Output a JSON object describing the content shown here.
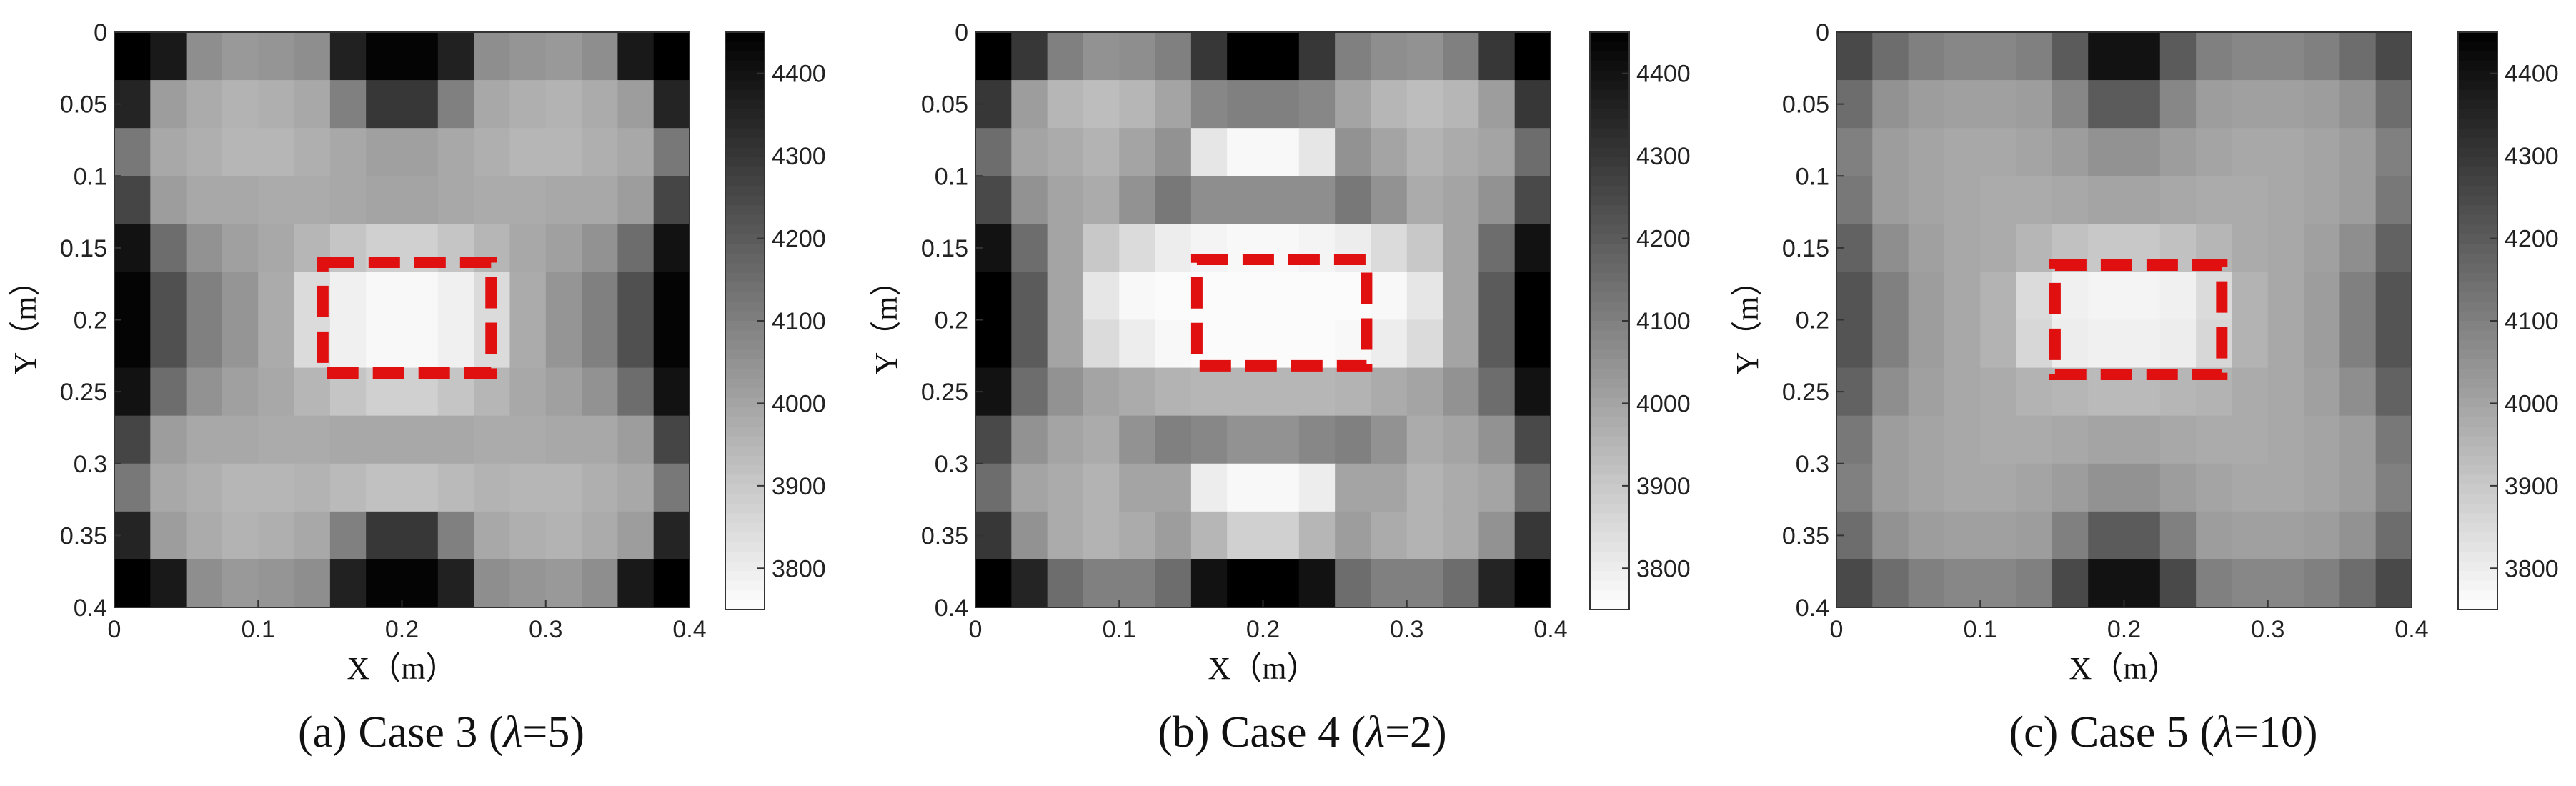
{
  "chart_data": [
    {
      "type": "heatmap",
      "caption": {
        "before": "(a) Case 3 (",
        "symbol": "λ",
        "after": "=5)"
      },
      "xlabel": "X（m）",
      "ylabel": "Y（m）",
      "xlim": [
        0,
        0.4
      ],
      "ylim": [
        0,
        0.4
      ],
      "x_ticks": [
        "0",
        "0.1",
        "0.2",
        "0.3",
        "0.4"
      ],
      "y_ticks": [
        "0",
        "0.05",
        "0.1",
        "0.15",
        "0.2",
        "0.25",
        "0.3",
        "0.35",
        "0.4"
      ],
      "colorbar": {
        "min": 3750,
        "max": 4450,
        "ticks": [
          "3800",
          "3900",
          "4000",
          "4100",
          "4200",
          "4300",
          "4400"
        ]
      },
      "grid": [
        [
          4450,
          4380,
          4060,
          4030,
          4040,
          4060,
          4360,
          4440,
          4440,
          4360,
          4060,
          4040,
          4030,
          4060,
          4380,
          4450
        ],
        [
          4350,
          4020,
          3980,
          3960,
          3970,
          3990,
          4100,
          4300,
          4300,
          4100,
          3990,
          3970,
          3960,
          3980,
          4020,
          4350
        ],
        [
          4120,
          3990,
          3970,
          3950,
          3950,
          3970,
          3990,
          4010,
          4010,
          3990,
          3970,
          3950,
          3950,
          3970,
          3990,
          4120
        ],
        [
          4260,
          4020,
          3990,
          3990,
          3980,
          3980,
          3990,
          4000,
          4000,
          3990,
          3980,
          3980,
          3990,
          3990,
          4020,
          4260
        ],
        [
          4400,
          4150,
          4050,
          4010,
          3990,
          3950,
          3910,
          3880,
          3880,
          3910,
          3950,
          3990,
          4010,
          4050,
          4150,
          4400
        ],
        [
          4440,
          4230,
          4100,
          4040,
          3980,
          3850,
          3790,
          3770,
          3770,
          3790,
          3850,
          3980,
          4040,
          4100,
          4230,
          4440
        ],
        [
          4440,
          4230,
          4100,
          4040,
          3980,
          3850,
          3790,
          3770,
          3770,
          3790,
          3850,
          3980,
          4040,
          4100,
          4230,
          4440
        ],
        [
          4400,
          4150,
          4050,
          4010,
          3990,
          3950,
          3910,
          3880,
          3880,
          3910,
          3950,
          3990,
          4010,
          4050,
          4150,
          4400
        ],
        [
          4260,
          4020,
          3990,
          3990,
          3980,
          3980,
          3990,
          3990,
          3990,
          3990,
          3980,
          3980,
          3990,
          3990,
          4020,
          4260
        ],
        [
          4120,
          3990,
          3970,
          3950,
          3950,
          3960,
          3940,
          3920,
          3920,
          3940,
          3960,
          3950,
          3950,
          3970,
          3990,
          4120
        ],
        [
          4350,
          4020,
          3980,
          3960,
          3970,
          3990,
          4100,
          4300,
          4300,
          4100,
          3990,
          3970,
          3960,
          3980,
          4020,
          4350
        ],
        [
          4450,
          4380,
          4060,
          4030,
          4040,
          4060,
          4360,
          4440,
          4440,
          4360,
          4060,
          4040,
          4030,
          4060,
          4380,
          4450
        ]
      ],
      "annotation_box": {
        "x": [
          0.145,
          0.262
        ],
        "y": [
          0.16,
          0.237
        ]
      }
    },
    {
      "type": "heatmap",
      "caption": {
        "before": "(b) Case 4 (",
        "symbol": "λ",
        "after": "=2)"
      },
      "xlabel": "X（m）",
      "ylabel": "Y（m）",
      "xlim": [
        0,
        0.4
      ],
      "ylim": [
        0,
        0.4
      ],
      "x_ticks": [
        "0",
        "0.1",
        "0.2",
        "0.3",
        "0.4"
      ],
      "y_ticks": [
        "0",
        "0.05",
        "0.1",
        "0.15",
        "0.2",
        "0.25",
        "0.3",
        "0.35",
        "0.4"
      ],
      "colorbar": {
        "min": 3750,
        "max": 4450,
        "ticks": [
          "3800",
          "3900",
          "4000",
          "4100",
          "4200",
          "4300",
          "4400"
        ]
      },
      "grid": [
        [
          4450,
          4300,
          4100,
          4050,
          4060,
          4100,
          4300,
          4450,
          4450,
          4300,
          4100,
          4060,
          4050,
          4100,
          4300,
          4450
        ],
        [
          4300,
          4020,
          3950,
          3930,
          3950,
          4000,
          4080,
          4100,
          4100,
          4080,
          4000,
          3950,
          3930,
          3950,
          4020,
          4300
        ],
        [
          4150,
          4000,
          3980,
          3960,
          4000,
          4050,
          3820,
          3770,
          3770,
          3820,
          4050,
          4000,
          3960,
          3980,
          4000,
          4150
        ],
        [
          4250,
          4050,
          4000,
          3980,
          4050,
          4120,
          4060,
          4060,
          4060,
          4060,
          4120,
          4050,
          3980,
          4000,
          4050,
          4250
        ],
        [
          4400,
          4150,
          4000,
          3900,
          3850,
          3800,
          3780,
          3770,
          3770,
          3780,
          3800,
          3850,
          3900,
          4000,
          4150,
          4400
        ],
        [
          4450,
          4200,
          4000,
          3820,
          3770,
          3760,
          3760,
          3760,
          3760,
          3760,
          3760,
          3770,
          3820,
          4000,
          4200,
          4450
        ],
        [
          4450,
          4200,
          4000,
          3850,
          3800,
          3770,
          3760,
          3760,
          3760,
          3760,
          3770,
          3800,
          3850,
          4000,
          4200,
          4450
        ],
        [
          4400,
          4150,
          4050,
          4000,
          3980,
          3960,
          3950,
          3950,
          3950,
          3950,
          3960,
          3980,
          4000,
          4050,
          4150,
          4400
        ],
        [
          4250,
          4050,
          4000,
          3980,
          4050,
          4100,
          4080,
          4050,
          4050,
          4080,
          4100,
          4050,
          3980,
          4000,
          4050,
          4250
        ],
        [
          4150,
          4000,
          3980,
          3960,
          4000,
          4000,
          3800,
          3770,
          3770,
          3800,
          4000,
          4000,
          3960,
          3980,
          4000,
          4150
        ],
        [
          4300,
          4050,
          3980,
          3960,
          3980,
          4020,
          3950,
          3880,
          3880,
          3950,
          4020,
          3980,
          3960,
          3980,
          4050,
          4300
        ],
        [
          4450,
          4350,
          4150,
          4100,
          4100,
          4150,
          4400,
          4450,
          4450,
          4400,
          4150,
          4100,
          4100,
          4150,
          4350,
          4450
        ]
      ],
      "annotation_box": {
        "x": [
          0.154,
          0.272
        ],
        "y": [
          0.158,
          0.232
        ]
      }
    },
    {
      "type": "heatmap",
      "caption": {
        "before": "(c) Case 5 (",
        "symbol": "λ",
        "after": "=10)"
      },
      "xlabel": "X（m）",
      "ylabel": "Y（m）",
      "xlim": [
        0,
        0.4
      ],
      "ylim": [
        0,
        0.4
      ],
      "x_ticks": [
        "0",
        "0.1",
        "0.2",
        "0.3",
        "0.4"
      ],
      "y_ticks": [
        "0",
        "0.05",
        "0.1",
        "0.15",
        "0.2",
        "0.25",
        "0.3",
        "0.35",
        "0.4"
      ],
      "colorbar": {
        "min": 3750,
        "max": 4450,
        "ticks": [
          "3800",
          "3900",
          "4000",
          "4100",
          "4200",
          "4300",
          "4400"
        ]
      },
      "grid": [
        [
          4250,
          4150,
          4100,
          4080,
          4080,
          4100,
          4200,
          4400,
          4400,
          4200,
          4100,
          4080,
          4080,
          4100,
          4150,
          4250
        ],
        [
          4150,
          4050,
          4020,
          4010,
          4010,
          4020,
          4080,
          4200,
          4200,
          4080,
          4020,
          4010,
          4010,
          4020,
          4050,
          4150
        ],
        [
          4100,
          4020,
          4000,
          3990,
          3990,
          4000,
          4020,
          4050,
          4050,
          4020,
          4000,
          3990,
          3990,
          4000,
          4020,
          4100
        ],
        [
          4120,
          4020,
          4000,
          3990,
          3980,
          3980,
          3990,
          4000,
          4000,
          3990,
          3980,
          3980,
          3990,
          4000,
          4020,
          4120
        ],
        [
          4180,
          4060,
          4010,
          3990,
          3980,
          3950,
          3920,
          3900,
          3900,
          3920,
          3950,
          3980,
          3990,
          4010,
          4060,
          4180
        ],
        [
          4220,
          4100,
          4020,
          3990,
          3960,
          3850,
          3790,
          3780,
          3780,
          3790,
          3850,
          3960,
          3990,
          4020,
          4100,
          4220
        ],
        [
          4220,
          4100,
          4020,
          3990,
          3960,
          3860,
          3800,
          3790,
          3790,
          3800,
          3860,
          3960,
          3990,
          4020,
          4100,
          4220
        ],
        [
          4180,
          4060,
          4010,
          3990,
          3980,
          3960,
          3950,
          3940,
          3940,
          3950,
          3960,
          3980,
          3990,
          4010,
          4060,
          4180
        ],
        [
          4120,
          4020,
          4000,
          3990,
          3980,
          3980,
          3990,
          4000,
          4000,
          3990,
          3980,
          3980,
          3990,
          4000,
          4020,
          4120
        ],
        [
          4100,
          4020,
          4000,
          3990,
          3990,
          4000,
          4020,
          4050,
          4050,
          4020,
          4000,
          3990,
          3990,
          4000,
          4020,
          4100
        ],
        [
          4150,
          4050,
          4020,
          4010,
          4010,
          4020,
          4100,
          4200,
          4200,
          4100,
          4020,
          4010,
          4010,
          4020,
          4050,
          4150
        ],
        [
          4250,
          4150,
          4100,
          4080,
          4080,
          4100,
          4250,
          4400,
          4400,
          4250,
          4100,
          4080,
          4080,
          4100,
          4150,
          4250
        ]
      ],
      "annotation_box": {
        "x": [
          0.152,
          0.268
        ],
        "y": [
          0.162,
          0.238
        ]
      }
    }
  ]
}
